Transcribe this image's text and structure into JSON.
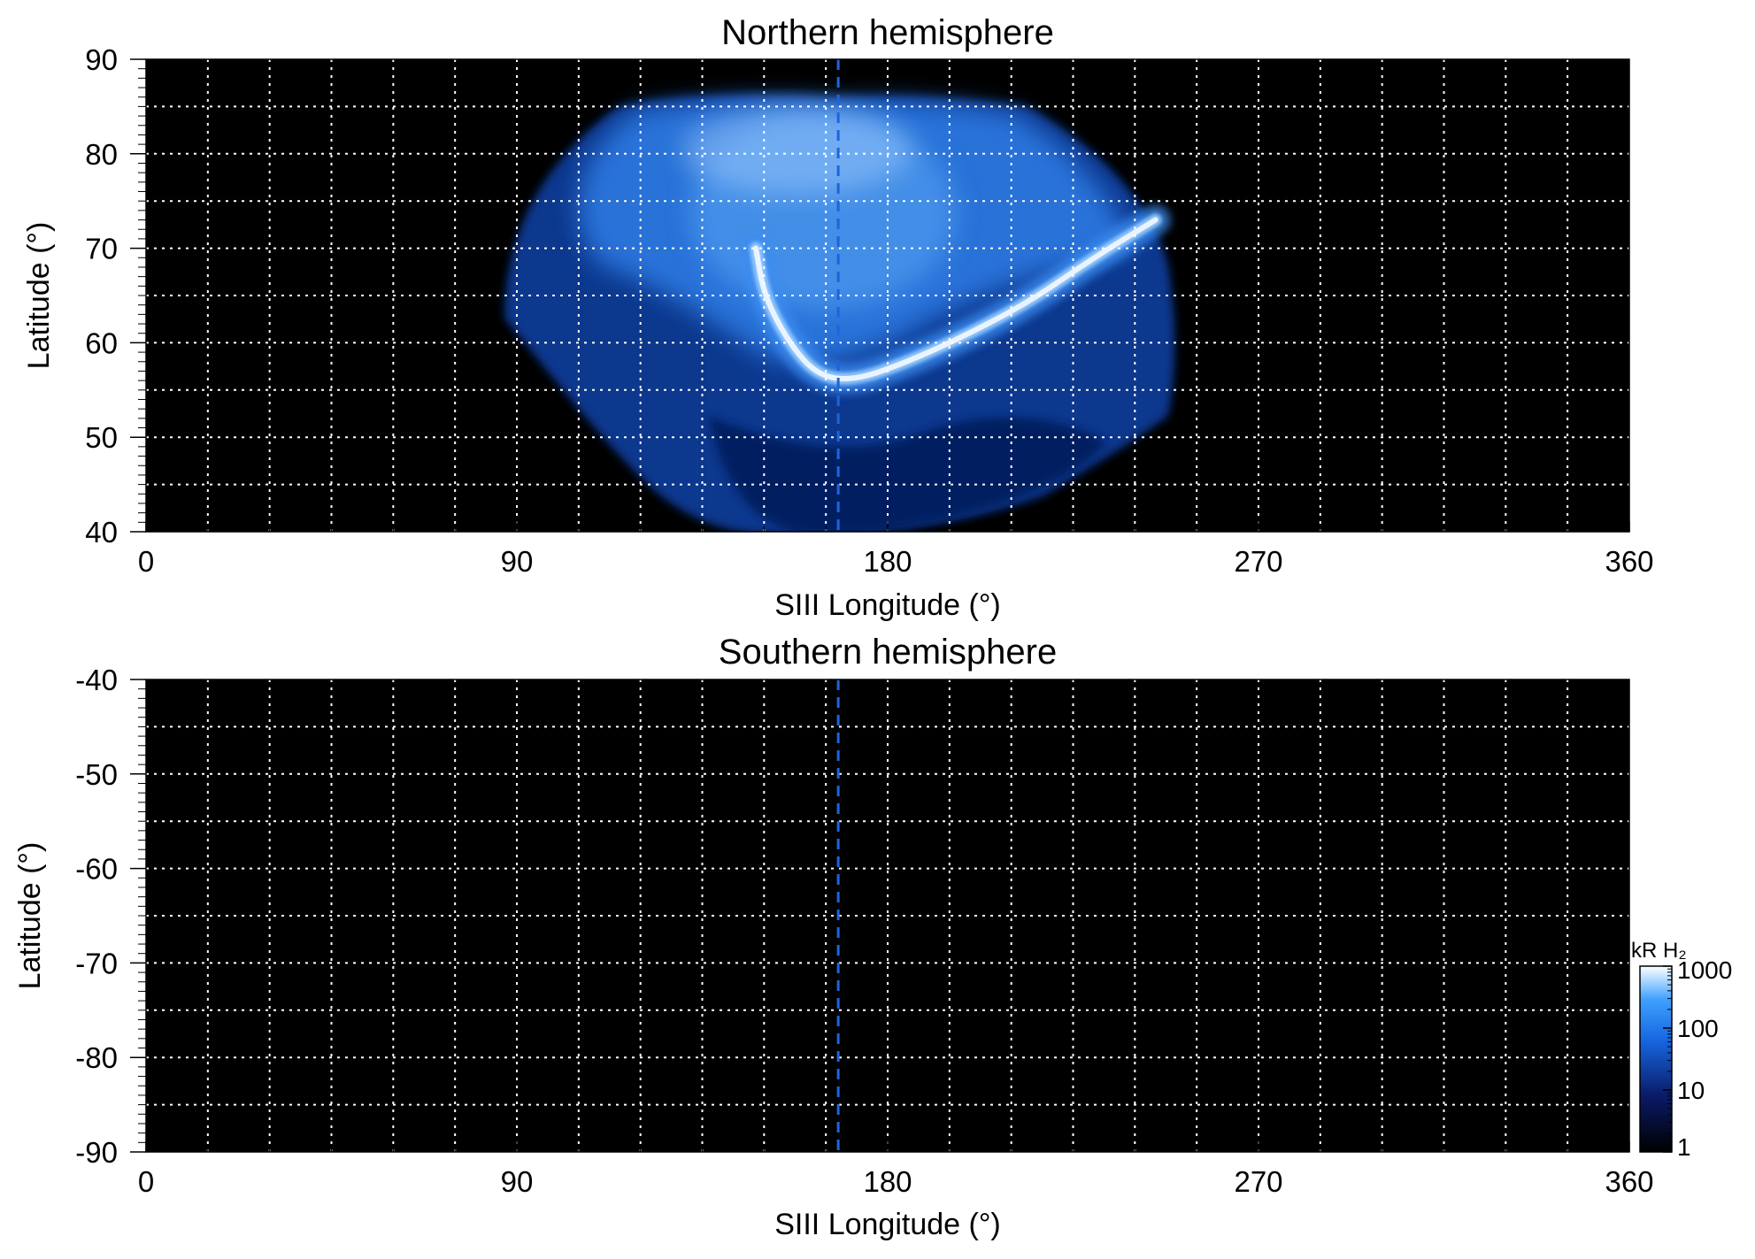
{
  "chart_data": [
    {
      "type": "heatmap",
      "title": "Northern hemisphere",
      "xlabel": "SIII Longitude (°)",
      "ylabel": "Latitude (°)",
      "xlim": [
        0,
        360
      ],
      "ylim": [
        40,
        90
      ],
      "x_ticks": [
        0,
        90,
        180,
        270,
        360
      ],
      "y_ticks": [
        40,
        50,
        60,
        70,
        80,
        90
      ],
      "grid": true,
      "grid_spacing_deg": {
        "longitude": 15,
        "latitude": 5
      },
      "background_color": "#000000",
      "reference_longitude": 168,
      "emission_coverage": {
        "longitude_range": [
          87,
          255
        ],
        "latitude_range": [
          40,
          86
        ]
      },
      "main_oval": [
        {
          "x": 148,
          "y": 70
        },
        {
          "x": 150,
          "y": 65
        },
        {
          "x": 156,
          "y": 60
        },
        {
          "x": 163,
          "y": 56.5
        },
        {
          "x": 172,
          "y": 56
        },
        {
          "x": 185,
          "y": 58
        },
        {
          "x": 200,
          "y": 61
        },
        {
          "x": 215,
          "y": 64.5
        },
        {
          "x": 230,
          "y": 69
        },
        {
          "x": 245,
          "y": 73
        }
      ]
    },
    {
      "type": "heatmap",
      "title": "Southern hemisphere",
      "xlabel": "SIII Longitude (°)",
      "ylabel": "Latitude (°)",
      "xlim": [
        0,
        360
      ],
      "ylim": [
        -90,
        -40
      ],
      "x_ticks": [
        0,
        90,
        180,
        270,
        360
      ],
      "y_ticks": [
        -40,
        -50,
        -60,
        -70,
        -80,
        -90
      ],
      "grid": true,
      "grid_spacing_deg": {
        "longitude": 15,
        "latitude": 5
      },
      "background_color": "#000000",
      "reference_longitude": 168
    }
  ],
  "colorbar": {
    "label": "kR H₂",
    "scale": "log",
    "range": [
      1,
      1000
    ],
    "ticks": [
      "1",
      "10",
      "100",
      "1000"
    ],
    "colors": [
      "#000000",
      "#0a1a66",
      "#1666e0",
      "#3fa0ff",
      "#ffffff"
    ],
    "placement": "bottom-right"
  },
  "colors": {
    "grid": "#ffffff",
    "reference_line": "#1e64dc",
    "aurora_bright": "#eaf4ff",
    "aurora_mid": "#3a8cf2",
    "aurora_dim": "#0f3c9c"
  }
}
